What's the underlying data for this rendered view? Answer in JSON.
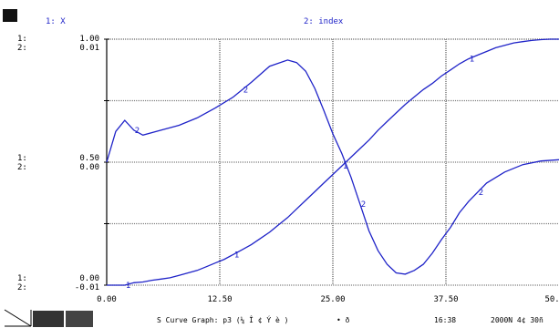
{
  "legend": {
    "series1": "1: X",
    "series2": "2: index"
  },
  "axis_labels": {
    "top_prefix": [
      "1:",
      "2:"
    ],
    "top_values": [
      "1.00",
      "0.01"
    ],
    "mid_prefix": [
      "1:",
      "2:"
    ],
    "mid_values": [
      "0.50",
      "0.00"
    ],
    "bot_prefix": [
      "1:",
      "2:"
    ],
    "bot_values": [
      "0.00",
      "-0.01"
    ]
  },
  "status": {
    "title": "S Curve Graph: p3 (¼ Î ¢ Ý è )",
    "glyph": "• ð",
    "time": "16:38",
    "date": "2000N 4¢ 30ñ"
  },
  "colors": {
    "series": "#1f23c8",
    "axis": "#000000",
    "grid": "#808080"
  },
  "chart_data": {
    "type": "line",
    "x_ticks": [
      "0.00",
      "12.50",
      "25.00",
      "37.50",
      "50.00"
    ],
    "xlim": [
      0,
      50
    ],
    "series": [
      {
        "name": "X",
        "ylim": [
          0,
          1
        ],
        "x": [
          0,
          1,
          2,
          3,
          4,
          5,
          6,
          7,
          8,
          9,
          10,
          11,
          12,
          13,
          14,
          15,
          16,
          17,
          18,
          19,
          20,
          21,
          22,
          23,
          24,
          25,
          26,
          27,
          28,
          29,
          30,
          31,
          32,
          33,
          34,
          35,
          36,
          37,
          38,
          39,
          40,
          41,
          42,
          43,
          44,
          45,
          46,
          47,
          48,
          49,
          50
        ],
        "y": [
          0.0,
          0.0,
          0.0,
          0.01,
          0.013,
          0.02,
          0.025,
          0.03,
          0.04,
          0.05,
          0.06,
          0.075,
          0.09,
          0.105,
          0.125,
          0.145,
          0.165,
          0.19,
          0.215,
          0.245,
          0.275,
          0.31,
          0.345,
          0.38,
          0.415,
          0.45,
          0.485,
          0.52,
          0.555,
          0.59,
          0.63,
          0.665,
          0.7,
          0.735,
          0.765,
          0.795,
          0.82,
          0.85,
          0.875,
          0.9,
          0.92,
          0.935,
          0.95,
          0.965,
          0.975,
          0.985,
          0.99,
          0.995,
          0.998,
          1.0,
          1.0
        ],
        "labels_at_x": [
          2,
          14,
          26,
          40
        ]
      },
      {
        "name": "index",
        "ylim": [
          -0.01,
          0.01
        ],
        "x": [
          0,
          1,
          2,
          3,
          4,
          6,
          8,
          10,
          12,
          14,
          16,
          18,
          20,
          21,
          22,
          23,
          24,
          25,
          26,
          27,
          28,
          29,
          30,
          31,
          32,
          33,
          34,
          35,
          36,
          37,
          38,
          39,
          40,
          42,
          44,
          46,
          48,
          50
        ],
        "y": [
          0.0,
          0.0025,
          0.0034,
          0.0026,
          0.0022,
          0.0026,
          0.003,
          0.0036,
          0.0044,
          0.0053,
          0.0065,
          0.0078,
          0.0083,
          0.0081,
          0.0074,
          0.006,
          0.0042,
          0.0023,
          0.0007,
          -0.0012,
          -0.0034,
          -0.0056,
          -0.0072,
          -0.0083,
          -0.009,
          -0.0091,
          -0.0088,
          -0.0083,
          -0.0074,
          -0.0063,
          -0.0053,
          -0.0041,
          -0.0032,
          -0.0017,
          -0.0008,
          -0.0002,
          0.0001,
          0.0002
        ],
        "labels_at_x": [
          3,
          15,
          28,
          41
        ]
      }
    ]
  }
}
